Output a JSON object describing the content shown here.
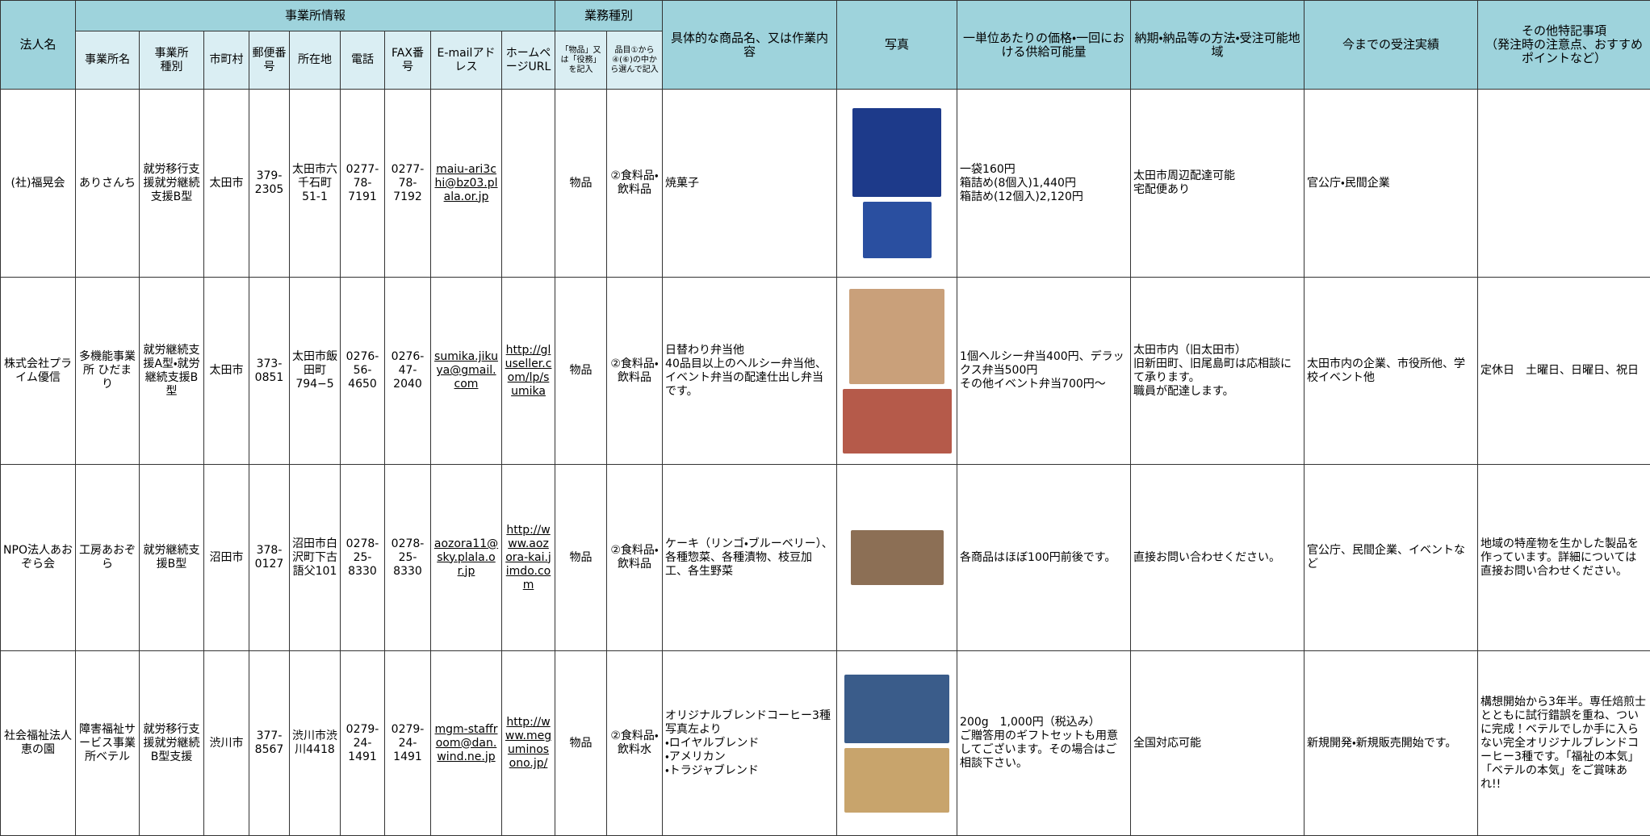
{
  "table": {
    "group_headers": {
      "corp": "法人名",
      "office_info": "事業所情報",
      "work_type": "業務種別",
      "product": "具体的な商品名、又は作業内容",
      "photo": "写真",
      "price": "一単位あたりの価格・一回における供給可能量",
      "delivery": "納期・納品等の方法・受注可能地域",
      "record": "今までの受注実績",
      "notes": "その他特記事項\n（発注時の注意点、おすすめポイントなど）"
    },
    "sub_headers": [
      "事業所名",
      "事業所\n種別",
      "市町村",
      "郵便番号",
      "所在地",
      "電話",
      "FAX番号",
      "E-mailアドレス",
      "ホームページURL",
      "「物品」又は「役務」を記入",
      "品目①から④(⑥)の中から選んで記入"
    ],
    "rows": [
      {
        "cells": [
          "(社)福晃会",
          "ありさんち",
          "就労移行支援就労継続支援B型",
          "太田市",
          "379-2305",
          "太田市六千石町51-1",
          "0277-78-7191",
          "0277-78-7192",
          "maiu-ari3chi@bz03.plala.or.jp",
          null,
          "物品",
          "②食料品・飲料品",
          "焼菓子",
          "一袋160円\n箱詰め(8個入)1,440円\n箱詰め(12個入)2,120円",
          "太田市周辺配達可能\n宅配便あり",
          "官公庁・民間企業",
          null
        ]
      },
      {
        "cells": [
          "株式会社プライム優信",
          "多機能事業所 ひだまり",
          "就労継続支援A型・就労継続支援B型",
          "太田市",
          "373-0851",
          "太田市飯田町794−5",
          "0276-56-4650",
          "0276-47-2040",
          "sumika.jikuya@gmail.com",
          "http://gluseller.com/lp/sumika",
          "物品",
          "②食料品・飲料品",
          "日替わり弁当他\n40品目以上のヘルシー弁当他、イベント弁当の配達仕出し弁当です。",
          "1個ヘルシー弁当400円、デラックス弁当500円\nその他イベント弁当700円～",
          "太田市内（旧太田市）\n旧新田町、旧尾島町は応相談にて承ります。\n職員が配達します。",
          "太田市内の企業、市役所他、学校イベント他",
          "定休日　土曜日、日曜日、祝日"
        ]
      },
      {
        "cells": [
          "NPO法人あおぞら会",
          "工房あおぞら",
          "就労継続支援B型",
          "沼田市",
          "378-0127",
          "沼田市白沢町下古語父101",
          "0278-25-8330",
          "0278-25-8330",
          "aozora11@sky.plala.or.jp",
          "http://www.aozora-kai.jimdo.com",
          "物品",
          "②食料品・飲料品",
          "ケーキ（リンゴ・ブルーベリー）、各種惣菜、各種漬物、枝豆加工、各生野菜",
          "各商品はほぼ100円前後です。",
          "直接お問い合わせください。",
          "官公庁、民間企業、イベントなど",
          "地域の特産物を生かした製品を作っています。詳細については直接お問い合わせください。"
        ]
      },
      {
        "cells": [
          "社会福祉法人恵の園",
          "障害福祉サービス事業所ベテル",
          "就労移行支援就労継続B型支援",
          "渋川市",
          "377-8567",
          "渋川市渋川4418",
          "0279-24-1491",
          "0279-24-1491",
          "mgm-staffroom@dan.wind.ne.jp",
          "http://www.meguminosono.jp/",
          "物品",
          "②食料品・飲料水",
          "オリジナルブレンドコーヒー3種\n写真左より\n・ロイヤルブレンド\n・アメリカン\n・トラジャブレンド",
          "200g　1,000円（税込み）\nご贈答用のギフトセットも用意してございます。その場合はご相談下さい。",
          "全国対応可能",
          "新規開発・新規販売開始です。",
          "構想開始から3年半。専任焙煎士とともに試行錯誤を重ね、ついに完成！ベテルでしか手に入らない完全オリジナルブレンドコーヒー3種です。「福祉の本気」「ベテルの本気」をご賞味あれ!!"
        ]
      }
    ]
  }
}
